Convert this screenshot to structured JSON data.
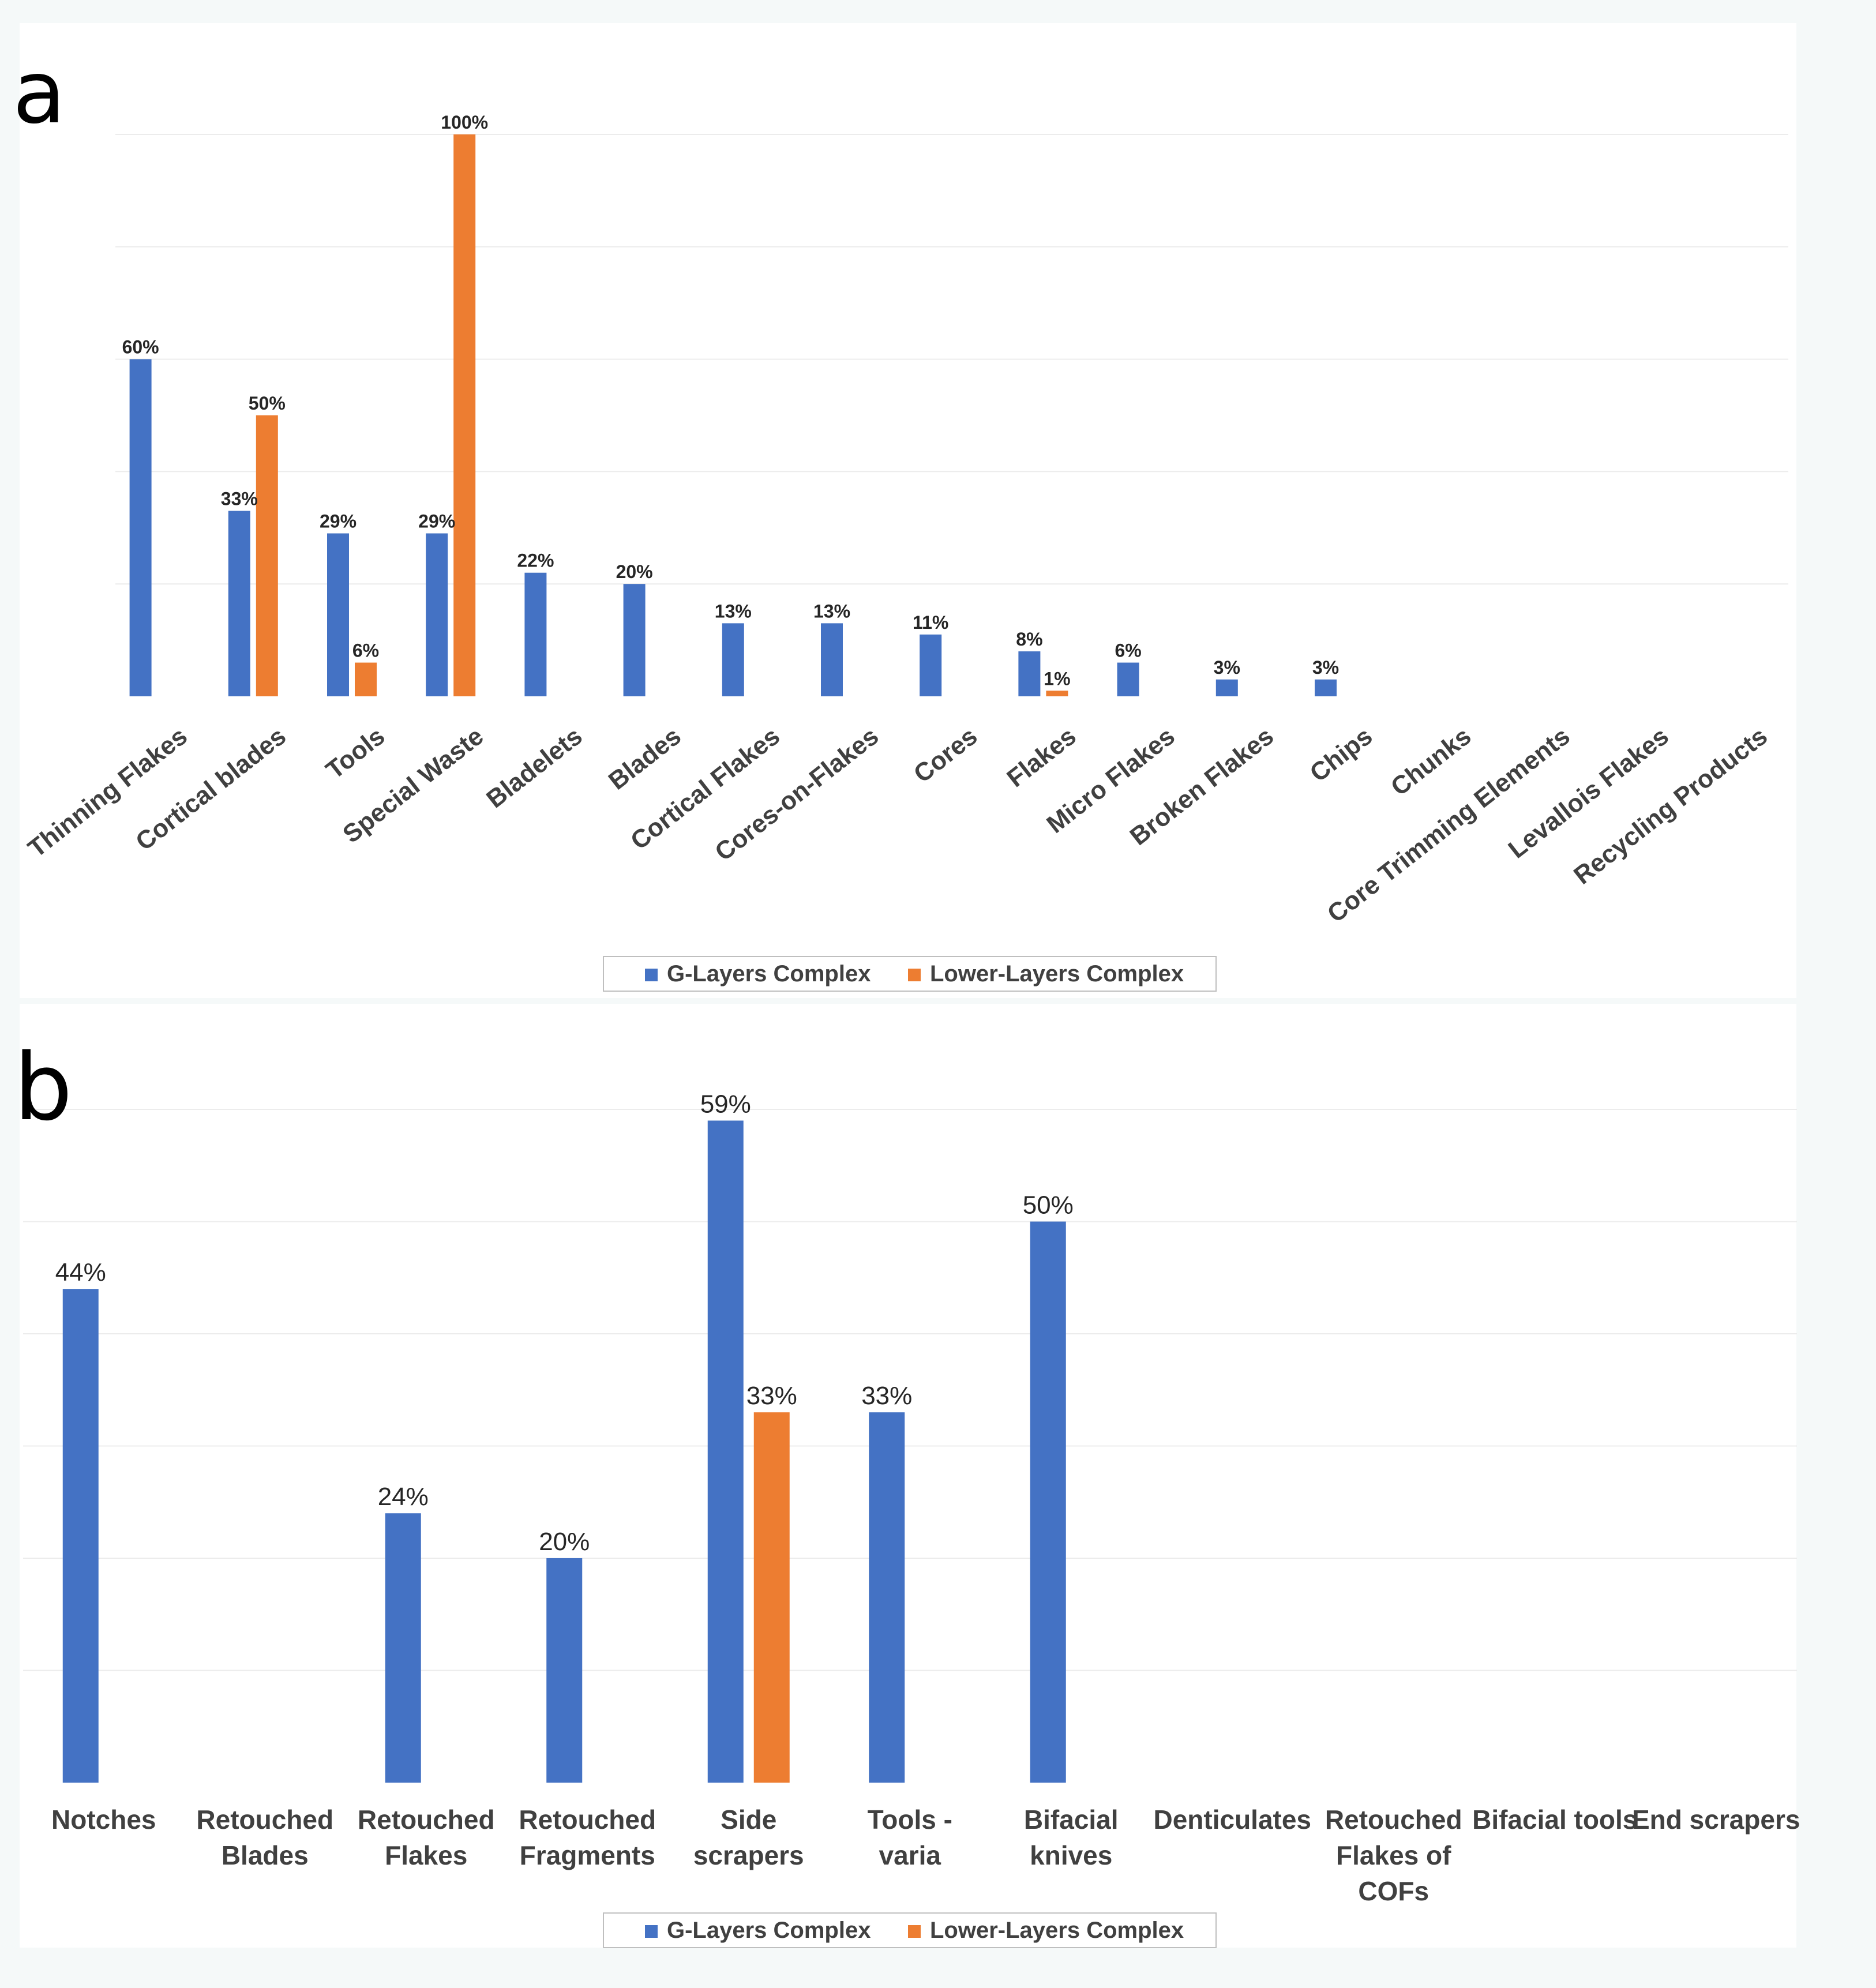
{
  "chart_data": [
    {
      "panel": "a",
      "type": "bar",
      "categories": [
        "Thinning Flakes",
        "Cortical blades",
        "Tools",
        "Special Waste",
        "Bladelets",
        "Blades",
        "Cortical Flakes",
        "Cores-on-Flakes",
        "Cores",
        "Flakes",
        "Micro Flakes",
        "Broken Flakes",
        "Chips",
        "Chunks",
        "Core Trimming Elements",
        "Levallois Flakes",
        "Recycling Products"
      ],
      "series": [
        {
          "name": "G-Layers Complex",
          "color": "#4472c4",
          "values": [
            60,
            33,
            29,
            29,
            22,
            20,
            13,
            13,
            11,
            8,
            6,
            3,
            3,
            null,
            null,
            null,
            null
          ],
          "labels": [
            "60%",
            "33%",
            "29%",
            "29%",
            "22%",
            "20%",
            "13%",
            "13%",
            "11%",
            "8%",
            "6%",
            "3%",
            "3%",
            null,
            null,
            null,
            null
          ]
        },
        {
          "name": "Lower-Layers Complex",
          "color": "#ed7d31",
          "values": [
            null,
            50,
            6,
            100,
            null,
            null,
            null,
            null,
            null,
            1,
            null,
            null,
            null,
            null,
            null,
            null,
            null
          ],
          "labels": [
            null,
            "50%",
            "6%",
            "100%",
            null,
            null,
            null,
            null,
            null,
            "1%",
            null,
            null,
            null,
            null,
            null,
            null,
            null
          ]
        }
      ],
      "ylim": [
        0,
        100
      ],
      "title": "",
      "xlabel": "",
      "ylabel": "",
      "grid": true,
      "legend": "bottom-center"
    },
    {
      "panel": "b",
      "type": "bar",
      "categories": [
        "Notches",
        "Retouched Blades",
        "Retouched Flakes",
        "Retouched Fragments",
        "Side scrapers",
        "Tools - varia",
        "Bifacial knives",
        "Denticulates",
        "Retouched Flakes of COFs",
        "Bifacial tools",
        "End scrapers"
      ],
      "series": [
        {
          "name": "G-Layers Complex",
          "color": "#4472c4",
          "values": [
            44,
            null,
            24,
            20,
            59,
            33,
            50,
            null,
            null,
            null,
            null
          ],
          "labels": [
            "44%",
            null,
            "24%",
            "20%",
            "59%",
            "33%",
            "50%",
            null,
            null,
            null,
            null
          ]
        },
        {
          "name": "Lower-Layers Complex",
          "color": "#ed7d31",
          "values": [
            null,
            null,
            null,
            null,
            33,
            null,
            null,
            null,
            null,
            null,
            null
          ],
          "labels": [
            null,
            null,
            null,
            null,
            "33%",
            null,
            null,
            null,
            null,
            null,
            null
          ]
        }
      ],
      "ylim": [
        0,
        60
      ],
      "title": "",
      "xlabel": "",
      "ylabel": "",
      "grid": true,
      "legend": "bottom-center"
    }
  ],
  "panels": {
    "a": {
      "letter": "a"
    },
    "b": {
      "letter": "b"
    }
  },
  "legend": {
    "items": [
      {
        "label": "G-Layers Complex",
        "color": "#4472c4"
      },
      {
        "label": "Lower-Layers Complex",
        "color": "#ed7d31"
      }
    ]
  }
}
